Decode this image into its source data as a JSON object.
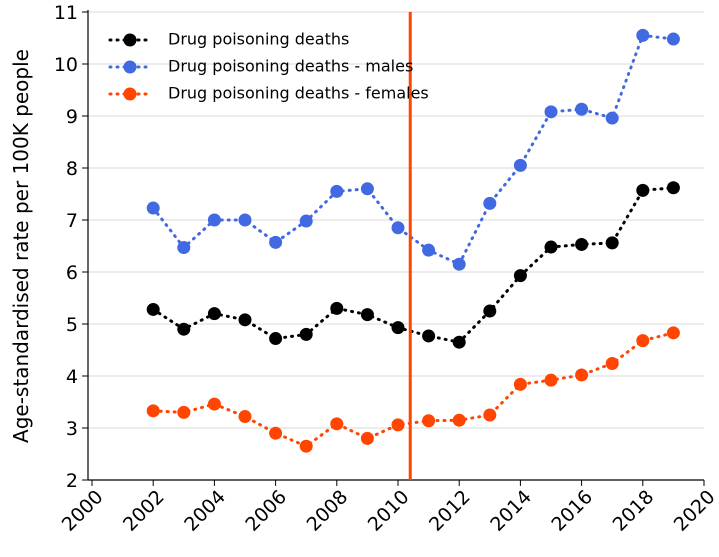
{
  "chart_data": {
    "type": "line",
    "y_label": "Age-standardised rate per 100K people",
    "x": [
      2002,
      2003,
      2004,
      2005,
      2006,
      2007,
      2008,
      2009,
      2010,
      2011,
      2012,
      2013,
      2014,
      2015,
      2016,
      2017,
      2018,
      2019
    ],
    "series": [
      {
        "name": "Drug poisoning deaths",
        "color": "#000000",
        "values": [
          5.28,
          4.9,
          5.2,
          5.08,
          4.72,
          4.8,
          5.3,
          5.18,
          4.93,
          4.77,
          4.65,
          5.25,
          5.93,
          6.48,
          6.53,
          6.56,
          7.57,
          7.62
        ]
      },
      {
        "name": "Drug poisoning deaths - males",
        "color": "#4169e1",
        "values": [
          7.23,
          6.47,
          7.0,
          7.0,
          6.57,
          6.98,
          7.55,
          7.6,
          6.85,
          6.42,
          6.15,
          7.32,
          8.05,
          9.08,
          9.13,
          8.96,
          10.55,
          10.48
        ]
      },
      {
        "name": "Drug poisoning deaths - females",
        "color": "#ff4500",
        "values": [
          3.33,
          3.3,
          3.46,
          3.22,
          2.9,
          2.65,
          3.08,
          2.8,
          3.06,
          3.14,
          3.15,
          3.25,
          3.84,
          3.92,
          4.02,
          4.24,
          4.68,
          4.83
        ]
      }
    ],
    "vline": {
      "x": 2010.4,
      "color": "#ff4500"
    },
    "xlim": [
      2000,
      2020
    ],
    "xticks": [
      2000,
      2002,
      2004,
      2006,
      2008,
      2010,
      2012,
      2014,
      2016,
      2018,
      2020
    ],
    "ylim": [
      2,
      11
    ],
    "yticks": [
      2,
      3,
      4,
      5,
      6,
      7,
      8,
      9,
      10,
      11
    ],
    "grid": true,
    "legend": "upper-left"
  }
}
